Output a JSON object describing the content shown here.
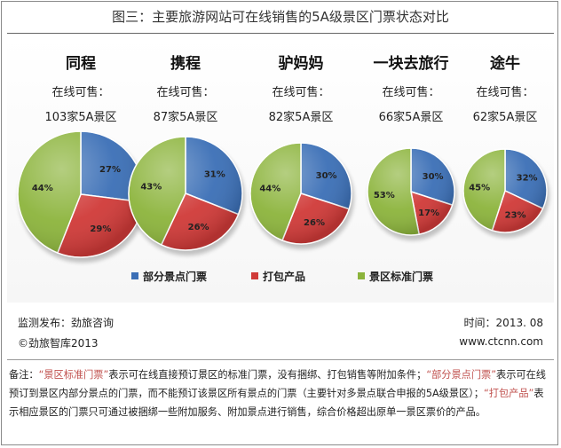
{
  "title": "图三：主要旅游网站可在线销售的5A级景区门票状态对比",
  "colors": {
    "partial": "#3b6fb6",
    "package": "#d03a38",
    "standard": "#8cb43c"
  },
  "chart_data": {
    "type": "pie",
    "legend": [
      "部分景点门票",
      "打包产品",
      "景区标准门票"
    ],
    "legend_position": "bottom",
    "charts": [
      {
        "name": "同程",
        "subtitle": "在线可售：",
        "count_label": "103家5A景区",
        "values": [
          27,
          29,
          44
        ],
        "labels": [
          "27%",
          "29%",
          "44%"
        ]
      },
      {
        "name": "携程",
        "subtitle": "在线可售：",
        "count_label": "87家5A景区",
        "values": [
          31,
          26,
          43
        ],
        "labels": [
          "31%",
          "26%",
          "43%"
        ]
      },
      {
        "name": "驴妈妈",
        "subtitle": "在线可售：",
        "count_label": "82家5A景区",
        "values": [
          30,
          26,
          44
        ],
        "labels": [
          "30%",
          "26%",
          "44%"
        ]
      },
      {
        "name": "一块去旅行",
        "subtitle": "在线可售：",
        "count_label": "66家5A景区",
        "values": [
          30,
          17,
          53
        ],
        "labels": [
          "30%",
          "17%",
          "53%"
        ]
      },
      {
        "name": "途牛",
        "subtitle": "在线可售：",
        "count_label": "62家5A景区",
        "values": [
          32,
          23,
          45
        ],
        "labels": [
          "32%",
          "23%",
          "45%"
        ]
      }
    ]
  },
  "footer": {
    "source": "监测发布：劲旅咨询",
    "copyright": "©劲旅智库2013",
    "time": "时间：2013. 08",
    "website": "www.ctcnn.com"
  },
  "notes": {
    "prefix": "备注：",
    "q1": "“景区标准门票”",
    "t1": "表示可在线直接预订景区的标准门票，没有捆绑、打包销售等附加条件；",
    "q2": "“部分景点门票”",
    "t2": "表示可在线预订到景区内部分景点的门票，而不能预订该景区所有景点的门票（主要针对多景点联合申报的5A级景区）；",
    "q3": "“打包产品”",
    "t3": "表示相应景区的门票只可通过被捆绑一些附加服务、附加景点进行销售，综合价格超出原单一景区票价的产品。"
  }
}
